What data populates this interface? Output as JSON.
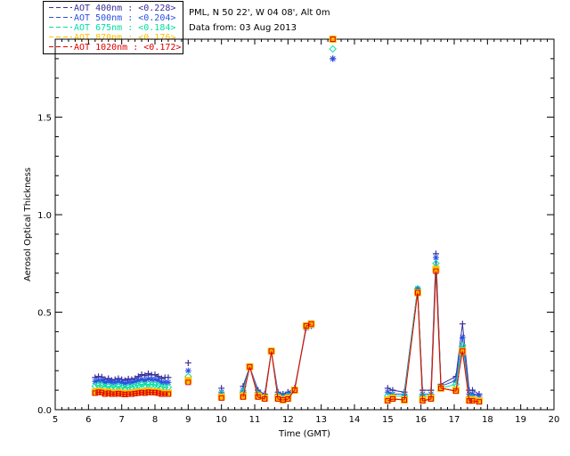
{
  "station": {
    "line1": "PML, N 50 22', W 04 08', Alt 0m",
    "line2": "Data from: 03 Aug 2013"
  },
  "legend": [
    {
      "label": "AOT  400nm : <0.228>",
      "color": "#3b2f9a"
    },
    {
      "label": "AOT  500nm : <0.204>",
      "color": "#2a52e0"
    },
    {
      "label": "AOT  675nm : <0.184>",
      "color": "#00e0a0"
    },
    {
      "label": "AOT  870nm : <0.176>",
      "color": "#ffc000"
    },
    {
      "label": "AOT 1020nm : <0.172>",
      "color": "#e00000"
    }
  ],
  "chart_data": {
    "type": "scatter",
    "title": "",
    "xlabel": "Time (GMT)",
    "ylabel": "Aerosol Optical Thickness",
    "xlim": [
      5,
      20
    ],
    "ylim": [
      0,
      1.9
    ],
    "x_ticks": [
      "5",
      "6",
      "7",
      "8",
      "9",
      "10",
      "11",
      "12",
      "13",
      "14",
      "15",
      "16",
      "17",
      "18",
      "19",
      "20"
    ],
    "y_ticks": [
      {
        "value": 0.0,
        "label": "0.0"
      },
      {
        "value": 0.5,
        "label": "0.5"
      },
      {
        "value": 1.0,
        "label": "1.0"
      },
      {
        "value": 1.5,
        "label": "1.5"
      }
    ],
    "x": [
      6.2,
      6.3,
      6.4,
      6.5,
      6.6,
      6.7,
      6.8,
      6.9,
      7.0,
      7.1,
      7.2,
      7.3,
      7.4,
      7.5,
      7.6,
      7.7,
      7.8,
      7.9,
      8.0,
      8.1,
      8.2,
      8.3,
      8.4,
      9.0,
      10.0,
      10.65,
      10.85,
      11.1,
      11.3,
      11.5,
      11.7,
      11.85,
      12.0,
      12.2,
      12.55,
      12.7,
      13.35,
      15.0,
      15.15,
      15.5,
      15.9,
      16.05,
      16.3,
      16.45,
      16.6,
      17.05,
      17.25,
      17.45,
      17.55,
      17.75
    ],
    "series": [
      {
        "name": "AOT 400nm",
        "marker": "plus",
        "values": [
          0.165,
          0.17,
          0.168,
          0.155,
          0.16,
          0.15,
          0.155,
          0.16,
          0.155,
          0.15,
          0.158,
          0.155,
          0.16,
          0.17,
          0.18,
          0.175,
          0.185,
          0.178,
          0.18,
          0.17,
          0.16,
          0.165,
          0.165,
          0.24,
          0.11,
          0.12,
          0.22,
          0.1,
          0.08,
          0.3,
          0.09,
          0.08,
          0.09,
          0.11,
          0.42,
          0.43,
          1.8,
          0.11,
          0.1,
          0.09,
          0.62,
          0.1,
          0.1,
          0.8,
          0.13,
          0.17,
          0.44,
          0.1,
          0.1,
          0.08
        ]
      },
      {
        "name": "AOT 500nm",
        "marker": "star",
        "values": [
          0.145,
          0.15,
          0.15,
          0.14,
          0.145,
          0.14,
          0.14,
          0.145,
          0.14,
          0.135,
          0.14,
          0.14,
          0.145,
          0.15,
          0.155,
          0.15,
          0.158,
          0.155,
          0.155,
          0.15,
          0.14,
          0.14,
          0.14,
          0.2,
          0.09,
          0.1,
          0.22,
          0.09,
          0.07,
          0.3,
          0.08,
          0.07,
          0.08,
          0.1,
          0.42,
          0.43,
          1.8,
          0.09,
          0.08,
          0.08,
          0.62,
          0.08,
          0.08,
          0.78,
          0.12,
          0.15,
          0.37,
          0.08,
          0.08,
          0.07
        ]
      },
      {
        "name": "AOT 675nm",
        "marker": "diamond",
        "values": [
          0.12,
          0.125,
          0.125,
          0.115,
          0.12,
          0.115,
          0.115,
          0.12,
          0.115,
          0.11,
          0.115,
          0.115,
          0.12,
          0.125,
          0.13,
          0.125,
          0.13,
          0.128,
          0.128,
          0.125,
          0.115,
          0.115,
          0.115,
          0.17,
          0.08,
          0.09,
          0.22,
          0.08,
          0.065,
          0.3,
          0.07,
          0.06,
          0.07,
          0.1,
          0.43,
          0.44,
          1.85,
          0.07,
          0.07,
          0.07,
          0.62,
          0.07,
          0.07,
          0.75,
          0.11,
          0.13,
          0.33,
          0.06,
          0.06,
          0.05
        ]
      },
      {
        "name": "AOT 870nm",
        "marker": "square",
        "values": [
          0.09,
          0.095,
          0.092,
          0.085,
          0.09,
          0.085,
          0.085,
          0.088,
          0.085,
          0.082,
          0.085,
          0.085,
          0.088,
          0.09,
          0.092,
          0.09,
          0.095,
          0.092,
          0.092,
          0.09,
          0.085,
          0.085,
          0.085,
          0.15,
          0.065,
          0.07,
          0.22,
          0.07,
          0.06,
          0.3,
          0.06,
          0.05,
          0.06,
          0.1,
          0.43,
          0.44,
          1.9,
          0.05,
          0.06,
          0.05,
          0.6,
          0.05,
          0.06,
          0.72,
          0.11,
          0.1,
          0.3,
          0.05,
          0.05,
          0.045
        ]
      },
      {
        "name": "AOT 1020nm",
        "marker": "square",
        "values": [
          0.085,
          0.09,
          0.088,
          0.08,
          0.085,
          0.08,
          0.08,
          0.083,
          0.08,
          0.078,
          0.08,
          0.08,
          0.083,
          0.085,
          0.088,
          0.085,
          0.09,
          0.088,
          0.088,
          0.085,
          0.08,
          0.08,
          0.08,
          0.14,
          0.06,
          0.065,
          0.22,
          0.065,
          0.055,
          0.3,
          0.055,
          0.05,
          0.055,
          0.1,
          0.43,
          0.44,
          1.9,
          0.045,
          0.055,
          0.05,
          0.6,
          0.045,
          0.055,
          0.71,
          0.11,
          0.095,
          0.3,
          0.045,
          0.045,
          0.04
        ]
      }
    ]
  }
}
